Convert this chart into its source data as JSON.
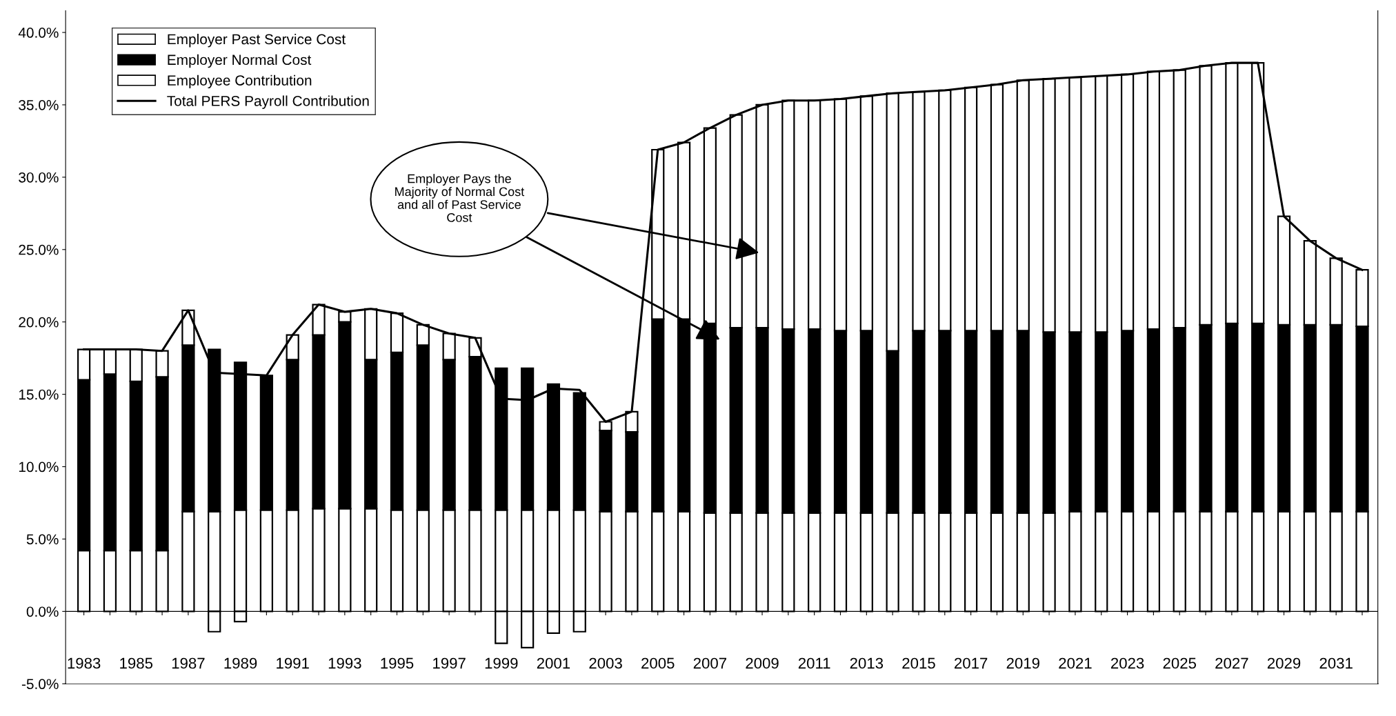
{
  "chart_data": {
    "type": "bar",
    "stacked": true,
    "categories": [
      "1983",
      null,
      "1985",
      null,
      "1987",
      null,
      "1989",
      null,
      "1991",
      null,
      "1993",
      null,
      "1995",
      null,
      "1997",
      null,
      "1999",
      null,
      "2001",
      null,
      "2003",
      null,
      "2005",
      null,
      "2007",
      null,
      "2009",
      null,
      "2011",
      null,
      "2013",
      null,
      "2015",
      null,
      "2017",
      null,
      "2019",
      null,
      "2021",
      null,
      "2023",
      null,
      "2025",
      null,
      "2027",
      null,
      "2029",
      null,
      "2031",
      null
    ],
    "series": [
      {
        "name": "Employee Contribution",
        "color": "#ffffff",
        "values": [
          4.2,
          4.2,
          4.2,
          4.2,
          6.9,
          6.9,
          7.0,
          7.0,
          7.0,
          7.1,
          7.1,
          7.1,
          7.0,
          7.0,
          7.0,
          7.0,
          7.0,
          7.0,
          7.0,
          7.0,
          6.9,
          6.9,
          6.9,
          6.9,
          6.8,
          6.8,
          6.8,
          6.8,
          6.8,
          6.8,
          6.8,
          6.8,
          6.8,
          6.8,
          6.8,
          6.8,
          6.8,
          6.8,
          6.9,
          6.9,
          6.9,
          6.9,
          6.9,
          6.9,
          6.9,
          6.9,
          6.9,
          6.9,
          6.9,
          6.9
        ]
      },
      {
        "name": "Employer Normal Cost",
        "color": "#000000",
        "values": [
          11.8,
          12.2,
          11.7,
          12.0,
          11.5,
          11.2,
          10.2,
          9.3,
          10.4,
          12.0,
          12.9,
          10.3,
          10.9,
          11.4,
          10.4,
          10.6,
          9.8,
          9.8,
          8.7,
          8.1,
          5.6,
          5.5,
          13.3,
          13.3,
          13.1,
          12.8,
          12.8,
          12.7,
          12.7,
          12.6,
          12.6,
          11.2,
          12.6,
          12.6,
          12.6,
          12.6,
          12.6,
          12.5,
          12.4,
          12.4,
          12.5,
          12.6,
          12.7,
          12.9,
          13.0,
          13.0,
          12.9,
          12.9,
          12.9,
          12.8
        ]
      },
      {
        "name": "Employer Past Service Cost",
        "color": "#ffffff",
        "values": [
          2.1,
          1.7,
          2.2,
          1.8,
          2.4,
          -1.4,
          -0.7,
          null,
          1.7,
          2.1,
          0.7,
          3.5,
          2.7,
          1.4,
          1.8,
          1.3,
          -2.2,
          -2.5,
          -1.5,
          -1.4,
          0.6,
          1.4,
          11.7,
          12.2,
          13.5,
          14.7,
          15.4,
          15.8,
          15.8,
          16.0,
          16.2,
          17.8,
          16.5,
          16.6,
          16.8,
          17.0,
          17.3,
          17.5,
          17.6,
          17.7,
          17.7,
          17.8,
          17.8,
          17.9,
          18.0,
          18.0,
          7.5,
          5.8,
          4.6,
          3.9
        ]
      },
      {
        "name": "Total PERS Payroll Contribution",
        "type": "line",
        "color": "#000000",
        "values": [
          18.1,
          18.1,
          18.1,
          18.0,
          20.8,
          16.5,
          16.4,
          16.3,
          19.1,
          21.2,
          20.7,
          20.9,
          20.6,
          19.8,
          19.2,
          18.9,
          14.7,
          14.6,
          15.4,
          15.3,
          13.1,
          13.8,
          31.9,
          32.4,
          33.4,
          34.3,
          35.0,
          35.3,
          35.3,
          35.4,
          35.6,
          35.8,
          35.9,
          36.0,
          36.2,
          36.4,
          36.7,
          36.8,
          36.9,
          37.0,
          37.1,
          37.3,
          37.4,
          37.7,
          37.9,
          37.9,
          27.3,
          25.6,
          24.4,
          23.6
        ]
      }
    ],
    "ylim": [
      -5,
      41.5
    ],
    "yticks": [
      {
        "value": -5,
        "label": "-5.0%"
      },
      {
        "value": 0,
        "label": "0.0%"
      },
      {
        "value": 5,
        "label": "5.0%"
      },
      {
        "value": 10,
        "label": "10.0%"
      },
      {
        "value": 15,
        "label": "15.0%"
      },
      {
        "value": 20,
        "label": "20.0%"
      },
      {
        "value": 25,
        "label": "25.0%"
      },
      {
        "value": 30,
        "label": "30.0%"
      },
      {
        "value": 35,
        "label": "35.0%"
      },
      {
        "value": 40,
        "label": "40.0%"
      }
    ],
    "legend": "top left",
    "grid": false,
    "ref_lines": [
      {
        "axis": "y",
        "value": 0,
        "color": "#000000",
        "line_style": "solid"
      }
    ],
    "annotations": [
      "Employer Pays the\nMajority of Normal Cost\nand all of Past Service\nCost"
    ]
  }
}
